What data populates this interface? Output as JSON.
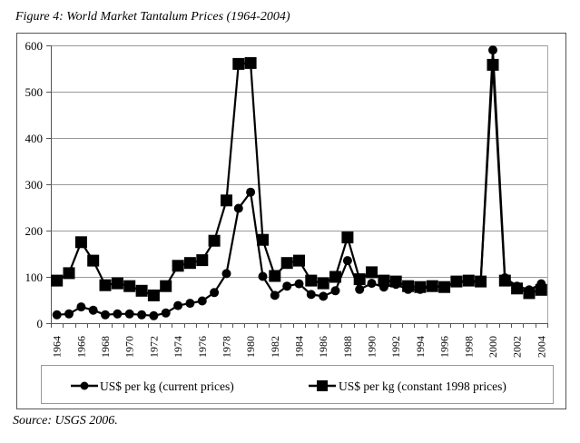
{
  "figure": {
    "title": "Figure 4: World Market Tantalum Prices (1964-2004)",
    "source": "Source: USGS 2006."
  },
  "chart_data": {
    "type": "line",
    "title": "Figure 4: World Market Tantalum Prices (1964-2004)",
    "xlabel": "",
    "ylabel": "",
    "ylim": [
      0,
      600
    ],
    "yticks": [
      0,
      100,
      200,
      300,
      400,
      500,
      600
    ],
    "ytick_labels": [
      "0",
      "100",
      "200",
      "300",
      "400",
      "500",
      "600"
    ],
    "grid": "horizontal",
    "legend_position": "bottom",
    "x": [
      1964,
      1965,
      1966,
      1967,
      1968,
      1969,
      1970,
      1971,
      1972,
      1973,
      1974,
      1975,
      1976,
      1977,
      1978,
      1979,
      1980,
      1981,
      1982,
      1983,
      1984,
      1985,
      1986,
      1987,
      1988,
      1989,
      1990,
      1991,
      1992,
      1993,
      1994,
      1995,
      1996,
      1997,
      1998,
      1999,
      2000,
      2001,
      2002,
      2003,
      2004
    ],
    "xtick_labels": [
      "1964",
      "1966",
      "1968",
      "1970",
      "1972",
      "1974",
      "1976",
      "1978",
      "1980",
      "1982",
      "1984",
      "1986",
      "1988",
      "1990",
      "1992",
      "1994",
      "1996",
      "1998",
      "2000",
      "2002",
      "2004"
    ],
    "series": [
      {
        "name": "US$ per kg (current prices)",
        "marker": "circle",
        "color": "#000000",
        "values": [
          18,
          20,
          35,
          28,
          18,
          20,
          20,
          18,
          16,
          22,
          38,
          43,
          48,
          66,
          107,
          248,
          283,
          101,
          60,
          80,
          85,
          62,
          58,
          70,
          135,
          73,
          86,
          78,
          84,
          73,
          73,
          80,
          78,
          88,
          90,
          88,
          590,
          98,
          80,
          72,
          85
        ]
      },
      {
        "name": "US$ per kg (constant 1998 prices)",
        "marker": "square",
        "color": "#000000",
        "values": [
          92,
          108,
          175,
          135,
          82,
          86,
          80,
          70,
          60,
          80,
          124,
          130,
          136,
          178,
          265,
          560,
          562,
          180,
          102,
          130,
          135,
          92,
          86,
          100,
          185,
          95,
          110,
          92,
          90,
          80,
          78,
          80,
          78,
          90,
          92,
          90,
          558,
          92,
          75,
          65,
          72
        ]
      }
    ]
  },
  "legend": {
    "items": [
      {
        "label": "US$ per kg (current prices)",
        "icon": "line-circle-marker"
      },
      {
        "label": "US$ per kg (constant 1998 prices)",
        "icon": "line-square-marker"
      }
    ]
  },
  "colors": {
    "series": "#000000",
    "grid": "#9a9a9a",
    "frame": "#555555",
    "background": "#ffffff"
  }
}
